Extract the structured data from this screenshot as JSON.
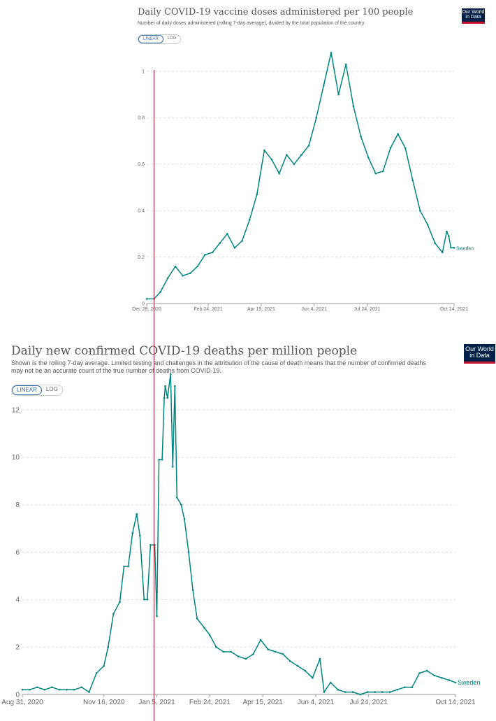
{
  "chart1": {
    "title": "Daily COVID-19 vaccine doses administered per 100 people",
    "subtitle": "Number of daily doses administered (rolling 7-day average), divided by the total population of the country.",
    "logo": [
      "Our World",
      "in Data"
    ],
    "toggle": [
      "LINEAR",
      "LOG"
    ],
    "active_scale": "LINEAR"
  },
  "chart2": {
    "title": "Daily new confirmed COVID-19 deaths per million people",
    "subtitle": "Shown is the rolling 7-day average. Limited testing and challenges in the attribution of the cause of death means that the number of confirmed deaths may not be an accurate count of the true number of deaths from COVID-19.",
    "logo": [
      "Our World",
      "in Data"
    ],
    "toggle": [
      "LINEAR",
      "LOG"
    ],
    "active_scale": "LINEAR"
  },
  "chart_data": [
    {
      "type": "line",
      "title": "Daily COVID-19 vaccine doses administered per 100 people",
      "xlabel": "",
      "ylabel": "",
      "x_ticks": [
        "Dec 28, 2020",
        "Feb 24, 2021",
        "Apr 15, 2021",
        "Jun 4, 2021",
        "Jul 24, 2021",
        "Oct 14, 2021"
      ],
      "y_ticks": [
        "0",
        "0.2",
        "0.4",
        "0.6",
        "0.8",
        "1"
      ],
      "ylim": [
        0,
        1
      ],
      "grid": true,
      "series": [
        {
          "name": "Sweden",
          "color": "#00847e",
          "points": [
            [
              "2020-12-28",
              0.02
            ],
            [
              "2021-01-04",
              0.02
            ],
            [
              "2021-01-10",
              0.05
            ],
            [
              "2021-01-17",
              0.11
            ],
            [
              "2021-01-24",
              0.16
            ],
            [
              "2021-01-31",
              0.12
            ],
            [
              "2021-02-07",
              0.13
            ],
            [
              "2021-02-14",
              0.16
            ],
            [
              "2021-02-21",
              0.21
            ],
            [
              "2021-02-28",
              0.22
            ],
            [
              "2021-03-07",
              0.26
            ],
            [
              "2021-03-14",
              0.3
            ],
            [
              "2021-03-21",
              0.24
            ],
            [
              "2021-03-28",
              0.27
            ],
            [
              "2021-04-04",
              0.36
            ],
            [
              "2021-04-11",
              0.47
            ],
            [
              "2021-04-18",
              0.66
            ],
            [
              "2021-04-25",
              0.62
            ],
            [
              "2021-05-02",
              0.56
            ],
            [
              "2021-05-09",
              0.64
            ],
            [
              "2021-05-16",
              0.6
            ],
            [
              "2021-05-23",
              0.64
            ],
            [
              "2021-05-30",
              0.68
            ],
            [
              "2021-06-06",
              0.8
            ],
            [
              "2021-06-13",
              0.94
            ],
            [
              "2021-06-20",
              1.08
            ],
            [
              "2021-06-27",
              0.9
            ],
            [
              "2021-07-04",
              1.03
            ],
            [
              "2021-07-11",
              0.85
            ],
            [
              "2021-07-18",
              0.72
            ],
            [
              "2021-07-25",
              0.63
            ],
            [
              "2021-08-01",
              0.56
            ],
            [
              "2021-08-08",
              0.57
            ],
            [
              "2021-08-15",
              0.67
            ],
            [
              "2021-08-22",
              0.73
            ],
            [
              "2021-08-29",
              0.67
            ],
            [
              "2021-09-05",
              0.53
            ],
            [
              "2021-09-12",
              0.4
            ],
            [
              "2021-09-19",
              0.34
            ],
            [
              "2021-09-26",
              0.26
            ],
            [
              "2021-10-03",
              0.22
            ],
            [
              "2021-10-07",
              0.31
            ],
            [
              "2021-10-09",
              0.29
            ],
            [
              "2021-10-11",
              0.24
            ],
            [
              "2021-10-14",
              0.24
            ]
          ]
        }
      ]
    },
    {
      "type": "line",
      "title": "Daily new confirmed COVID-19 deaths per million people",
      "xlabel": "",
      "ylabel": "",
      "x_ticks": [
        "Aug 31, 2020",
        "Nov 16, 2020",
        "Jan 5, 2021",
        "Feb 24, 2021",
        "Apr 15, 2021",
        "Jun 4, 2021",
        "Jul 24, 2021",
        "Oct 14, 2021"
      ],
      "y_ticks": [
        "0",
        "2",
        "4",
        "6",
        "8",
        "10",
        "12"
      ],
      "ylim": [
        0,
        14
      ],
      "grid": true,
      "series": [
        {
          "name": "Sweden",
          "color": "#00847e",
          "points": [
            [
              "2020-08-31",
              0.2
            ],
            [
              "2020-09-07",
              0.2
            ],
            [
              "2020-09-14",
              0.3
            ],
            [
              "2020-09-21",
              0.2
            ],
            [
              "2020-09-28",
              0.3
            ],
            [
              "2020-10-05",
              0.2
            ],
            [
              "2020-10-12",
              0.2
            ],
            [
              "2020-10-19",
              0.2
            ],
            [
              "2020-10-26",
              0.3
            ],
            [
              "2020-11-02",
              0.1
            ],
            [
              "2020-11-09",
              0.9
            ],
            [
              "2020-11-16",
              1.2
            ],
            [
              "2020-11-20",
              2.0
            ],
            [
              "2020-11-25",
              3.4
            ],
            [
              "2020-12-01",
              3.9
            ],
            [
              "2020-12-05",
              5.4
            ],
            [
              "2020-12-09",
              5.4
            ],
            [
              "2020-12-13",
              6.8
            ],
            [
              "2020-12-17",
              7.6
            ],
            [
              "2020-12-20",
              6.7
            ],
            [
              "2020-12-24",
              4.0
            ],
            [
              "2020-12-27",
              4.0
            ],
            [
              "2020-12-30",
              6.3
            ],
            [
              "2021-01-03",
              6.3
            ],
            [
              "2021-01-05",
              3.3
            ],
            [
              "2021-01-07",
              9.9
            ],
            [
              "2021-01-10",
              9.9
            ],
            [
              "2021-01-12",
              12.5
            ],
            [
              "2021-01-13",
              13.0
            ],
            [
              "2021-01-15",
              12.5
            ],
            [
              "2021-01-18",
              13.5
            ],
            [
              "2021-01-20",
              9.6
            ],
            [
              "2021-01-22",
              13.0
            ],
            [
              "2021-01-24",
              8.3
            ],
            [
              "2021-01-28",
              8.0
            ],
            [
              "2021-01-31",
              7.4
            ],
            [
              "2021-02-04",
              6.0
            ],
            [
              "2021-02-08",
              4.4
            ],
            [
              "2021-02-12",
              3.2
            ],
            [
              "2021-02-19",
              2.8
            ],
            [
              "2021-02-24",
              2.5
            ],
            [
              "2021-03-02",
              2.0
            ],
            [
              "2021-03-09",
              1.8
            ],
            [
              "2021-03-16",
              1.8
            ],
            [
              "2021-03-23",
              1.6
            ],
            [
              "2021-03-30",
              1.5
            ],
            [
              "2021-04-06",
              1.7
            ],
            [
              "2021-04-13",
              2.3
            ],
            [
              "2021-04-20",
              1.9
            ],
            [
              "2021-04-27",
              1.8
            ],
            [
              "2021-05-04",
              1.7
            ],
            [
              "2021-05-11",
              1.4
            ],
            [
              "2021-05-18",
              1.2
            ],
            [
              "2021-05-25",
              1.0
            ],
            [
              "2021-06-01",
              0.7
            ],
            [
              "2021-06-08",
              1.5
            ],
            [
              "2021-06-12",
              0.1
            ],
            [
              "2021-06-18",
              0.5
            ],
            [
              "2021-06-25",
              0.2
            ],
            [
              "2021-07-02",
              0.1
            ],
            [
              "2021-07-09",
              0.1
            ],
            [
              "2021-07-16",
              0.0
            ],
            [
              "2021-07-23",
              0.1
            ],
            [
              "2021-07-30",
              0.1
            ],
            [
              "2021-08-06",
              0.1
            ],
            [
              "2021-08-13",
              0.1
            ],
            [
              "2021-08-20",
              0.2
            ],
            [
              "2021-08-27",
              0.3
            ],
            [
              "2021-09-03",
              0.3
            ],
            [
              "2021-09-10",
              0.9
            ],
            [
              "2021-09-17",
              1.0
            ],
            [
              "2021-09-24",
              0.8
            ],
            [
              "2021-10-01",
              0.7
            ],
            [
              "2021-10-08",
              0.6
            ],
            [
              "2021-10-14",
              0.5
            ]
          ]
        }
      ]
    }
  ]
}
